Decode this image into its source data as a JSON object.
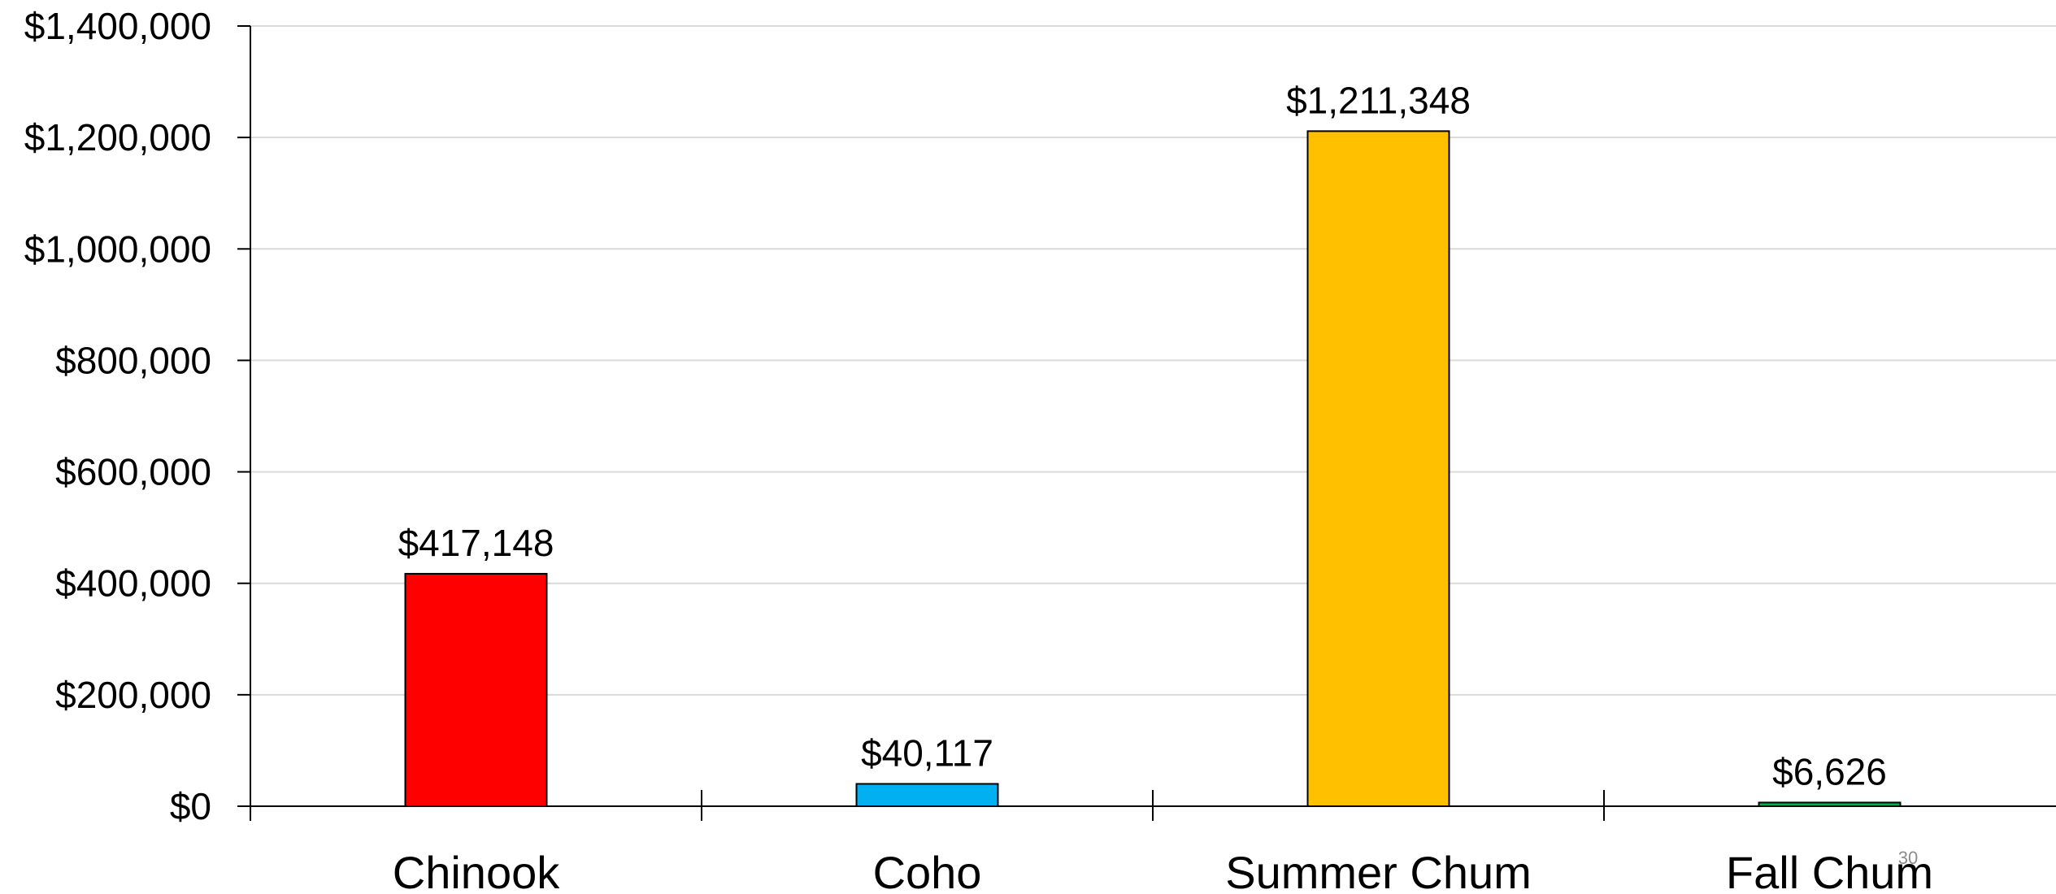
{
  "chart_data": {
    "type": "bar",
    "categories": [
      "Chinook",
      "Coho",
      "Summer Chum",
      "Fall Chum"
    ],
    "values": [
      417148,
      40117,
      1211348,
      6626
    ],
    "data_labels": [
      "$417,148",
      "$40,117",
      "$1,211,348",
      "$6,626"
    ],
    "colors": [
      "#ff0000",
      "#00b0f0",
      "#ffc000",
      "#00b050"
    ],
    "ylim": [
      0,
      1400000
    ],
    "yticks": [
      0,
      200000,
      400000,
      600000,
      800000,
      1000000,
      1200000,
      1400000
    ],
    "ytick_labels": [
      "$0",
      "$200,000",
      "$400,000",
      "$600,000",
      "$800,000",
      "$1,000,000",
      "$1,200,000",
      "$1,400,000"
    ],
    "grid": true,
    "title": "",
    "xlabel": "",
    "ylabel": ""
  },
  "slide_number": "30"
}
